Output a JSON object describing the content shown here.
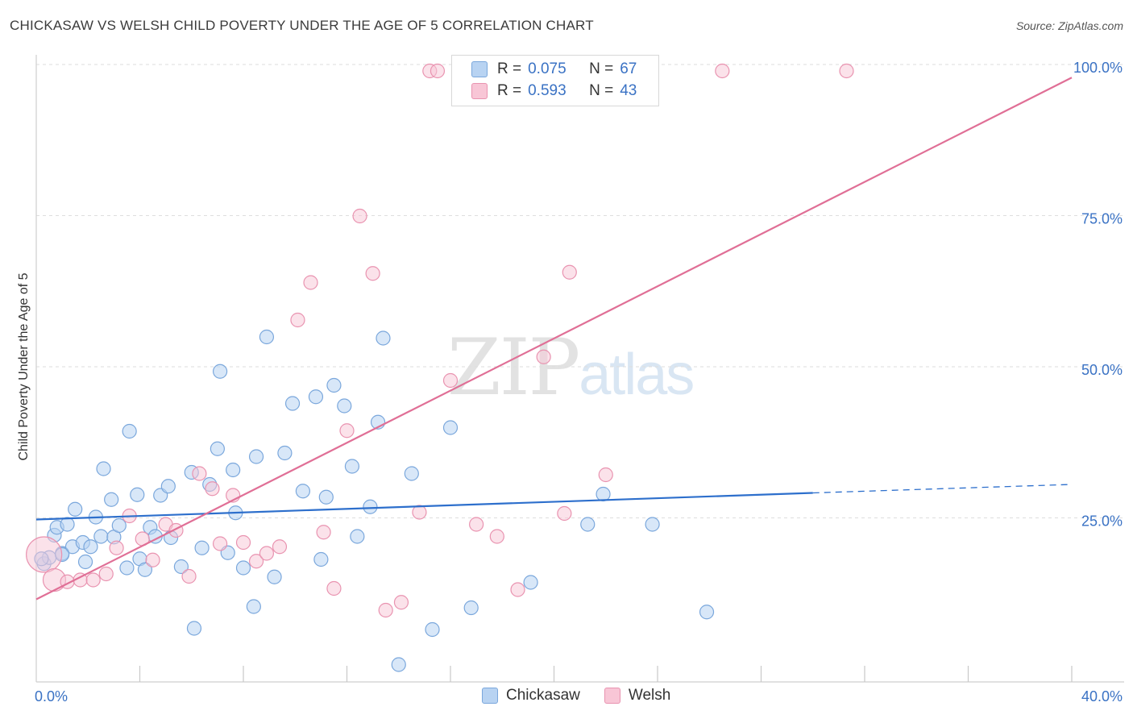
{
  "header": {
    "title": "CHICKASAW VS WELSH CHILD POVERTY UNDER THE AGE OF 5 CORRELATION CHART",
    "source": "Source: ZipAtlas.com"
  },
  "watermark": {
    "zip": "ZIP",
    "atlas": "atlas"
  },
  "legend": {
    "rows": [
      {
        "r_label": "R =",
        "r_value": "0.075",
        "n_label": "N =",
        "n_value": "67"
      },
      {
        "r_label": "R =",
        "r_value": "0.593",
        "n_label": "N =",
        "n_value": "43"
      }
    ]
  },
  "bottom_legend": {
    "chickasaw": "Chickasaw",
    "welsh": "Welsh"
  },
  "colors": {
    "chickasaw_fill": "#b8d3f2",
    "chickasaw_stroke": "#7aa7dc",
    "chickasaw_line": "#2d6fcc",
    "welsh_fill": "#f8c6d6",
    "welsh_stroke": "#e993b0",
    "welsh_line": "#e06f96",
    "axis_text": "#3a72c4",
    "grid": "#dedede"
  },
  "chart_data": {
    "type": "scatter",
    "title": "CHICKASAW VS WELSH CHILD POVERTY UNDER THE AGE OF 5 CORRELATION CHART",
    "xlabel": "",
    "ylabel": "Child Poverty Under the Age of 5",
    "xlim": [
      0,
      40
    ],
    "ylim": [
      0,
      100
    ],
    "x_tick_labels": [
      "0.0%",
      "40.0%"
    ],
    "y_ticks": [
      25,
      50,
      75,
      100
    ],
    "y_tick_labels": [
      "25.0%",
      "50.0%",
      "75.0%",
      "100.0%"
    ],
    "grid": true,
    "legend_position": "top-center",
    "series": [
      {
        "name": "Chickasaw",
        "R": 0.075,
        "N": 67,
        "trend": {
          "x0": 0,
          "y0": 25.8,
          "x1": 30,
          "y1": 30.2,
          "dash_x1": 40,
          "dash_y1": 31.6
        },
        "points": [
          [
            0.3,
            18.5
          ],
          [
            0.5,
            19.5
          ],
          [
            0.7,
            23.2
          ],
          [
            0.8,
            24.5
          ],
          [
            1.0,
            20.2
          ],
          [
            1.2,
            25.0
          ],
          [
            1.4,
            21.3
          ],
          [
            1.5,
            27.5
          ],
          [
            1.8,
            22.0
          ],
          [
            1.9,
            18.8
          ],
          [
            2.1,
            21.3
          ],
          [
            2.3,
            26.2
          ],
          [
            2.5,
            23.0
          ],
          [
            2.6,
            34.2
          ],
          [
            2.9,
            29.1
          ],
          [
            3.0,
            22.9
          ],
          [
            3.2,
            24.8
          ],
          [
            3.5,
            17.8
          ],
          [
            3.6,
            40.4
          ],
          [
            3.9,
            29.9
          ],
          [
            4.0,
            19.3
          ],
          [
            4.2,
            17.5
          ],
          [
            4.4,
            24.5
          ],
          [
            4.6,
            23.0
          ],
          [
            4.8,
            29.8
          ],
          [
            5.1,
            31.3
          ],
          [
            5.2,
            22.8
          ],
          [
            5.6,
            18.0
          ],
          [
            6.0,
            33.6
          ],
          [
            6.1,
            7.8
          ],
          [
            6.4,
            21.1
          ],
          [
            6.7,
            31.6
          ],
          [
            7.0,
            37.5
          ],
          [
            7.1,
            50.3
          ],
          [
            7.4,
            20.3
          ],
          [
            7.6,
            34.0
          ],
          [
            7.7,
            26.9
          ],
          [
            8.0,
            17.8
          ],
          [
            8.4,
            11.4
          ],
          [
            8.5,
            36.2
          ],
          [
            8.9,
            56.0
          ],
          [
            9.2,
            16.3
          ],
          [
            9.6,
            36.8
          ],
          [
            9.9,
            45.0
          ],
          [
            10.3,
            30.5
          ],
          [
            10.8,
            46.1
          ],
          [
            11.0,
            19.2
          ],
          [
            11.2,
            29.5
          ],
          [
            11.5,
            48.0
          ],
          [
            11.9,
            44.6
          ],
          [
            12.2,
            34.6
          ],
          [
            12.4,
            23.0
          ],
          [
            12.9,
            27.9
          ],
          [
            13.2,
            41.9
          ],
          [
            13.4,
            55.8
          ],
          [
            14.0,
            1.8
          ],
          [
            14.5,
            33.4
          ],
          [
            15.3,
            7.6
          ],
          [
            16.0,
            41.0
          ],
          [
            16.8,
            11.2
          ],
          [
            19.1,
            15.4
          ],
          [
            21.3,
            25.0
          ],
          [
            21.9,
            30.0
          ],
          [
            23.8,
            25.0
          ],
          [
            25.9,
            10.5
          ],
          [
            0.2,
            19.3
          ],
          [
            1.0,
            20.0
          ]
        ]
      },
      {
        "name": "Welsh",
        "R": 0.593,
        "N": 43,
        "trend": {
          "x0": 0,
          "y0": 12.6,
          "x1": 40,
          "y1": 98.9
        },
        "points": [
          [
            0.3,
            20.0
          ],
          [
            0.7,
            15.8
          ],
          [
            1.2,
            15.5
          ],
          [
            1.7,
            15.8
          ],
          [
            2.2,
            15.8
          ],
          [
            2.7,
            16.8
          ],
          [
            3.1,
            21.1
          ],
          [
            3.6,
            26.4
          ],
          [
            4.1,
            22.6
          ],
          [
            4.5,
            19.1
          ],
          [
            5.0,
            25.0
          ],
          [
            5.4,
            24.0
          ],
          [
            5.9,
            16.4
          ],
          [
            6.3,
            33.4
          ],
          [
            6.8,
            30.9
          ],
          [
            7.1,
            21.8
          ],
          [
            7.6,
            29.8
          ],
          [
            8.0,
            22.0
          ],
          [
            8.5,
            18.9
          ],
          [
            8.9,
            20.2
          ],
          [
            9.4,
            21.3
          ],
          [
            10.1,
            58.8
          ],
          [
            10.6,
            65.0
          ],
          [
            11.1,
            23.7
          ],
          [
            11.5,
            14.4
          ],
          [
            12.0,
            40.5
          ],
          [
            12.5,
            76.0
          ],
          [
            13.0,
            66.5
          ],
          [
            13.5,
            10.8
          ],
          [
            14.1,
            12.1
          ],
          [
            14.8,
            27.0
          ],
          [
            15.2,
            100.0
          ],
          [
            15.5,
            100.0
          ],
          [
            16.0,
            48.8
          ],
          [
            17.0,
            25.0
          ],
          [
            17.8,
            23.0
          ],
          [
            18.6,
            14.2
          ],
          [
            19.6,
            52.7
          ],
          [
            20.4,
            26.8
          ],
          [
            20.6,
            66.7
          ],
          [
            22.0,
            33.2
          ],
          [
            26.5,
            100.0
          ],
          [
            31.3,
            100.0
          ]
        ]
      }
    ]
  }
}
